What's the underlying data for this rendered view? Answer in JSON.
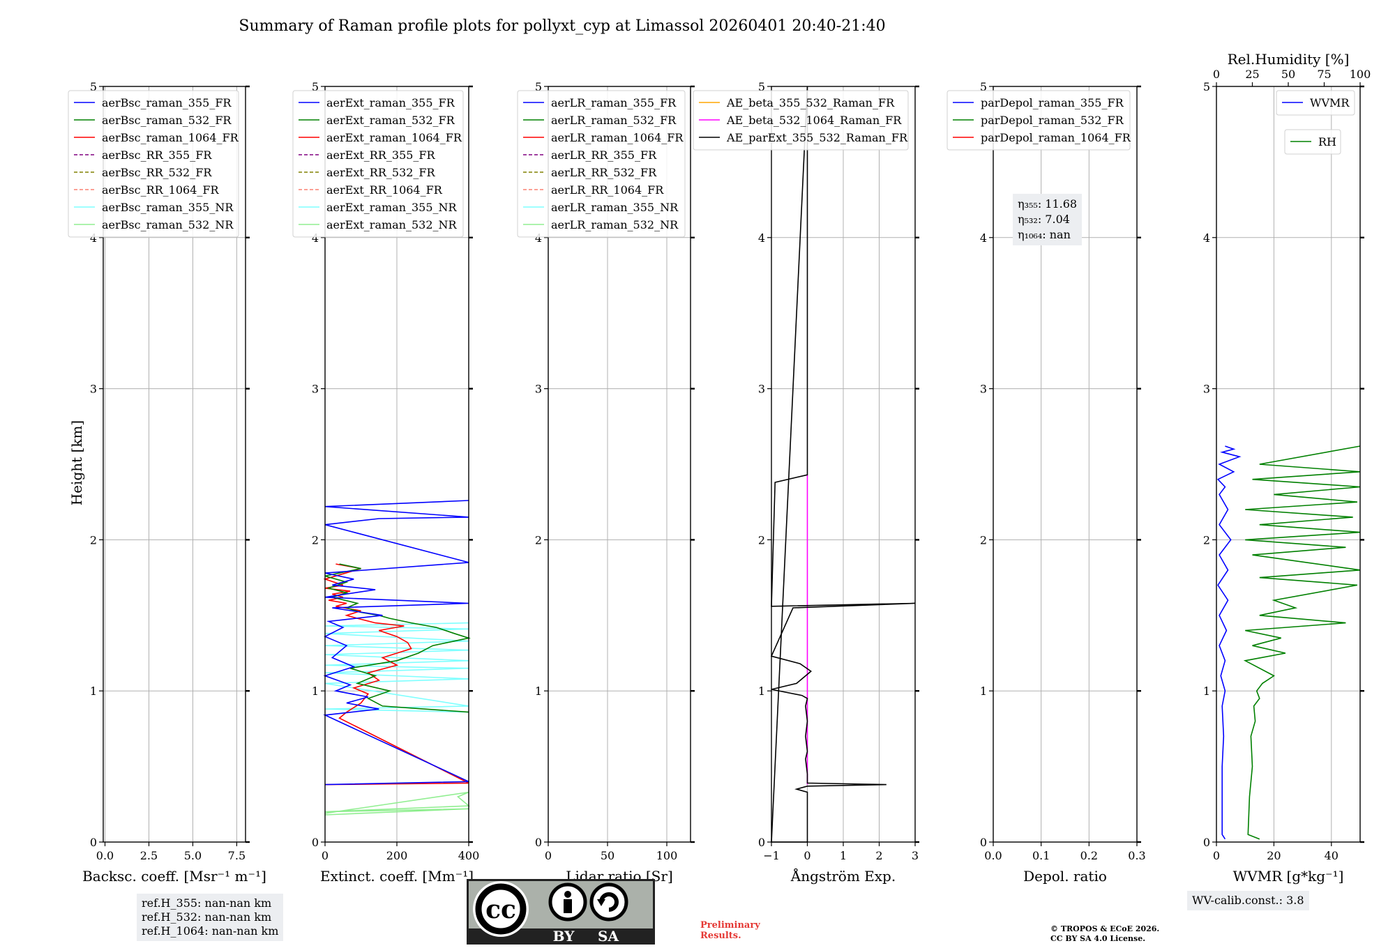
{
  "title": "Summary of Raman profile plots for pollyxt_cyp at Limassol 20260401 20:40-21:40",
  "ylabel": "Height [km]",
  "ref_heights": [
    "ref.H_355: nan-nan km",
    "ref.H_532: nan-nan km",
    "ref.H_1064: nan-nan km"
  ],
  "wv_calib": "WV-calib.const.: 3.8",
  "eta_lines": [
    "η₃₅₅: 11.68",
    "η₅₃₂: 7.04",
    "η₁₀₆₄: nan"
  ],
  "preliminary": "Preliminary\nResults.",
  "copyright": "© TROPOS & ECoE 2026.\nCC BY SA 4.0 License.",
  "license_badge": {
    "cc": "cc",
    "by": "BY",
    "sa": "SA"
  },
  "colors": {
    "blue": "#0000ff",
    "green": "#008000",
    "red": "#ff0000",
    "purple": "#800080",
    "olive": "#808000",
    "salmon": "#fa8072",
    "aqua": "#7fffff",
    "lightgreen": "#90ee90",
    "orange": "#ffa500",
    "magenta": "#ff00ff",
    "black": "#000000",
    "grid": "#b0b0b0",
    "infobox": "#eceef1",
    "prelim": "#e53935"
  },
  "chart_data": [
    {
      "type": "line",
      "name": "backscatter",
      "xlabel": "Backsc. coeff. [Msr⁻¹ m⁻¹]",
      "xlim": [
        -0.1,
        8
      ],
      "ylim": [
        0,
        5
      ],
      "xticks": [
        0,
        2.5,
        5,
        7.5
      ],
      "xticklabels": [
        "0.0",
        "2.5",
        "5.0",
        "7.5"
      ],
      "yticks": [
        0,
        1,
        2,
        3,
        4,
        5
      ],
      "legend": [
        {
          "label": "aerBsc_raman_355_FR",
          "color": "blue",
          "style": "solid"
        },
        {
          "label": "aerBsc_raman_532_FR",
          "color": "green",
          "style": "solid"
        },
        {
          "label": "aerBsc_raman_1064_FR",
          "color": "red",
          "style": "solid"
        },
        {
          "label": "aerBsc_RR_355_FR",
          "color": "purple",
          "style": "dashed"
        },
        {
          "label": "aerBsc_RR_532_FR",
          "color": "olive",
          "style": "dashed"
        },
        {
          "label": "aerBsc_RR_1064_FR",
          "color": "salmon",
          "style": "dashed"
        },
        {
          "label": "aerBsc_raman_355_NR",
          "color": "aqua",
          "style": "solid"
        },
        {
          "label": "aerBsc_raman_532_NR",
          "color": "lightgreen",
          "style": "solid"
        }
      ],
      "series": []
    },
    {
      "type": "line",
      "name": "extinction",
      "xlabel": "Extinct. coeff. [Mm⁻¹]",
      "xlim": [
        0,
        400
      ],
      "ylim": [
        0,
        5
      ],
      "xticks": [
        0,
        200,
        400
      ],
      "xticklabels": [
        "0",
        "200",
        "400"
      ],
      "yticks": [
        0,
        1,
        2,
        3,
        4,
        5
      ],
      "legend": [
        {
          "label": "aerExt_raman_355_FR",
          "color": "blue",
          "style": "solid"
        },
        {
          "label": "aerExt_raman_532_FR",
          "color": "green",
          "style": "solid"
        },
        {
          "label": "aerExt_raman_1064_FR",
          "color": "red",
          "style": "solid"
        },
        {
          "label": "aerExt_RR_355_FR",
          "color": "purple",
          "style": "dashed"
        },
        {
          "label": "aerExt_RR_532_FR",
          "color": "olive",
          "style": "dashed"
        },
        {
          "label": "aerExt_RR_1064_FR",
          "color": "salmon",
          "style": "dashed"
        },
        {
          "label": "aerExt_raman_355_NR",
          "color": "aqua",
          "style": "solid"
        },
        {
          "label": "aerExt_raman_532_NR",
          "color": "lightgreen",
          "style": "solid"
        }
      ],
      "series": [
        {
          "name": "aerExt_raman_355_NR",
          "color": "aqua",
          "x": [
            400,
            0,
            400,
            0,
            400,
            0,
            400,
            0,
            400,
            0,
            400,
            0,
            400,
            0,
            400,
            0,
            400
          ],
          "y": [
            1.45,
            1.43,
            1.41,
            1.38,
            1.33,
            1.3,
            1.27,
            1.24,
            1.2,
            1.17,
            1.15,
            1.12,
            1.08,
            1.05,
            0.9,
            0.88,
            0.86
          ]
        },
        {
          "name": "aerExt_raman_532_NR",
          "color": "lightgreen",
          "x": [
            0,
            400,
            0,
            400,
            370,
            400,
            0
          ],
          "y": [
            0.18,
            0.22,
            0.2,
            0.24,
            0.3,
            0.33,
            0.19
          ]
        },
        {
          "name": "aerExt_raman_1064_FR",
          "color": "red",
          "x": [
            0,
            400,
            40,
            60,
            100,
            120,
            80,
            150,
            120,
            200,
            160,
            240,
            230,
            200,
            150,
            220,
            140,
            90,
            60,
            100,
            30,
            60,
            10,
            50,
            20,
            70,
            0,
            50,
            0,
            100,
            30
          ],
          "y": [
            0.38,
            0.39,
            0.82,
            0.86,
            0.92,
            0.98,
            1.02,
            1.07,
            1.12,
            1.17,
            1.22,
            1.28,
            1.32,
            1.36,
            1.4,
            1.43,
            1.45,
            1.48,
            1.5,
            1.53,
            1.56,
            1.58,
            1.6,
            1.62,
            1.64,
            1.66,
            1.68,
            1.7,
            1.74,
            1.81,
            1.84
          ]
        },
        {
          "name": "aerExt_raman_532_FR",
          "color": "green",
          "x": [
            400,
            160,
            120,
            180,
            90,
            140,
            70,
            200,
            260,
            300,
            400,
            360,
            310,
            240,
            180,
            150,
            100,
            60,
            90,
            20,
            60,
            10,
            60,
            0,
            100,
            40
          ],
          "y": [
            0.86,
            0.9,
            0.95,
            1.0,
            1.05,
            1.1,
            1.15,
            1.2,
            1.25,
            1.3,
            1.35,
            1.38,
            1.42,
            1.45,
            1.48,
            1.5,
            1.52,
            1.55,
            1.58,
            1.62,
            1.65,
            1.68,
            1.72,
            1.76,
            1.81,
            1.84
          ]
        },
        {
          "name": "aerExt_raman_355_FR",
          "color": "blue",
          "x": [
            0,
            400,
            0,
            150,
            60,
            120,
            30,
            70,
            0,
            80,
            20,
            60,
            0,
            50,
            10,
            160,
            20,
            400,
            0,
            140,
            20,
            80,
            0,
            400,
            0,
            150,
            400,
            0,
            400
          ],
          "y": [
            0.38,
            0.4,
            0.84,
            0.88,
            0.92,
            0.96,
            1.0,
            1.04,
            1.1,
            1.16,
            1.22,
            1.3,
            1.36,
            1.42,
            1.46,
            1.5,
            1.55,
            1.58,
            1.62,
            1.67,
            1.7,
            1.74,
            1.78,
            1.85,
            2.1,
            2.14,
            2.15,
            2.22,
            2.26
          ]
        }
      ]
    },
    {
      "type": "line",
      "name": "lidar_ratio",
      "xlabel": "Lidar ratio [Sr]",
      "xlim": [
        0,
        120
      ],
      "ylim": [
        0,
        5
      ],
      "xticks": [
        0,
        50,
        100
      ],
      "xticklabels": [
        "0",
        "50",
        "100"
      ],
      "yticks": [
        0,
        1,
        2,
        3,
        4,
        5
      ],
      "legend": [
        {
          "label": "aerLR_raman_355_FR",
          "color": "blue",
          "style": "solid"
        },
        {
          "label": "aerLR_raman_532_FR",
          "color": "green",
          "style": "solid"
        },
        {
          "label": "aerLR_raman_1064_FR",
          "color": "red",
          "style": "solid"
        },
        {
          "label": "aerLR_RR_355_FR",
          "color": "purple",
          "style": "dashed"
        },
        {
          "label": "aerLR_RR_532_FR",
          "color": "olive",
          "style": "dashed"
        },
        {
          "label": "aerLR_RR_1064_FR",
          "color": "salmon",
          "style": "dashed"
        },
        {
          "label": "aerLR_raman_355_NR",
          "color": "aqua",
          "style": "solid"
        },
        {
          "label": "aerLR_raman_532_NR",
          "color": "lightgreen",
          "style": "solid"
        }
      ],
      "series": []
    },
    {
      "type": "line",
      "name": "angstrom",
      "xlabel": "Ångström Exp.",
      "xlim": [
        -1,
        3
      ],
      "ylim": [
        0,
        5
      ],
      "xticks": [
        -1,
        0,
        1,
        2,
        3
      ],
      "xticklabels": [
        "−1",
        "0",
        "1",
        "2",
        "3"
      ],
      "yticks": [
        0,
        1,
        2,
        3,
        4,
        5
      ],
      "legend": [
        {
          "label": "AE_beta_355_532_Raman_FR",
          "color": "orange",
          "style": "solid"
        },
        {
          "label": "AE_beta_532_1064_Raman_FR",
          "color": "magenta",
          "style": "solid"
        },
        {
          "label": "AE_parExt_355_532_Raman_FR",
          "color": "black",
          "style": "solid"
        }
      ],
      "series": [
        {
          "name": "AE_beta_532_1064_Raman_FR",
          "color": "magenta",
          "x": [
            0,
            0
          ],
          "y": [
            0.38,
            2.43
          ]
        },
        {
          "name": "AE_parExt_355_532_Raman_FR",
          "color": "black",
          "x": [
            0,
            0,
            -0.3,
            0,
            2.2,
            0,
            0,
            -0.05,
            0,
            -0.05,
            0,
            -0.05,
            0,
            -0.15,
            -1,
            -0.3,
            0.1,
            -0.2,
            -1,
            -0.4,
            3,
            -1,
            -0.9,
            0,
            0,
            -1,
            0,
            0
          ],
          "y": [
            0,
            0.33,
            0.35,
            0.37,
            0.38,
            0.39,
            0.45,
            0.55,
            0.6,
            0.7,
            0.8,
            0.9,
            0.95,
            0.97,
            1.01,
            1.05,
            1.13,
            1.18,
            1.23,
            1.55,
            1.58,
            1.56,
            2.38,
            2.43,
            5.0,
            0,
            0,
            0
          ]
        }
      ]
    },
    {
      "type": "line",
      "name": "depolarization",
      "xlabel": "Depol. ratio",
      "xlim": [
        0,
        0.3
      ],
      "ylim": [
        0,
        5
      ],
      "xticks": [
        0,
        0.1,
        0.2,
        0.3
      ],
      "xticklabels": [
        "0.0",
        "0.1",
        "0.2",
        "0.3"
      ],
      "yticks": [
        0,
        1,
        2,
        3,
        4,
        5
      ],
      "legend": [
        {
          "label": "parDepol_raman_355_FR",
          "color": "blue",
          "style": "solid"
        },
        {
          "label": "parDepol_raman_532_FR",
          "color": "green",
          "style": "solid"
        },
        {
          "label": "parDepol_raman_1064_FR",
          "color": "red",
          "style": "solid"
        }
      ],
      "series": []
    },
    {
      "type": "line",
      "name": "water_vapor",
      "xlabel": "WVMR [g*kg⁻¹]",
      "xlim": [
        0,
        50
      ],
      "ylim": [
        0,
        5
      ],
      "xticks": [
        0,
        20,
        40
      ],
      "xticklabels": [
        "0",
        "20",
        "40"
      ],
      "yticks": [
        0,
        1,
        2,
        3,
        4,
        5
      ],
      "top_xlabel": "Rel.Humidity [%]",
      "top_xlim": [
        0,
        100
      ],
      "top_xticks": [
        0,
        25,
        50,
        75,
        100
      ],
      "top_xticklabels": [
        "0",
        "25",
        "50",
        "75",
        "100"
      ],
      "legend": [
        {
          "label": "WVMR",
          "color": "blue",
          "style": "solid"
        },
        {
          "label": "RH",
          "color": "green",
          "style": "solid"
        }
      ],
      "series": [
        {
          "name": "RH",
          "color": "green",
          "axis": "top",
          "x": [
            30,
            22,
            23,
            25,
            24,
            27,
            26,
            30,
            28,
            32,
            40,
            20,
            48,
            25,
            45,
            20,
            90,
            30,
            55,
            40,
            98,
            30,
            100,
            25,
            90,
            20,
            100,
            30,
            95,
            20,
            98,
            40,
            100,
            25,
            100,
            30,
            100
          ],
          "y": [
            0.02,
            0.05,
            0.3,
            0.5,
            0.7,
            0.8,
            0.9,
            0.95,
            1.0,
            1.05,
            1.1,
            1.2,
            1.25,
            1.3,
            1.35,
            1.4,
            1.45,
            1.5,
            1.55,
            1.6,
            1.7,
            1.75,
            1.8,
            1.9,
            1.95,
            2.0,
            2.05,
            2.1,
            2.15,
            2.2,
            2.25,
            2.3,
            2.35,
            2.4,
            2.45,
            2.5,
            2.62
          ]
        },
        {
          "name": "WVMR",
          "color": "blue",
          "axis": "bottom",
          "x": [
            3,
            2,
            2,
            2.5,
            2,
            3,
            1.5,
            3,
            1,
            3.5,
            1,
            4,
            0.5,
            4,
            1,
            5,
            1,
            4,
            1,
            3,
            0.5,
            6,
            1,
            8,
            2,
            6,
            3
          ],
          "y": [
            0.02,
            0.05,
            0.5,
            0.7,
            0.9,
            1.0,
            1.1,
            1.2,
            1.3,
            1.4,
            1.5,
            1.6,
            1.7,
            1.8,
            1.9,
            2.0,
            2.1,
            2.2,
            2.3,
            2.35,
            2.4,
            2.45,
            2.5,
            2.55,
            2.58,
            2.6,
            2.62
          ]
        }
      ]
    }
  ]
}
